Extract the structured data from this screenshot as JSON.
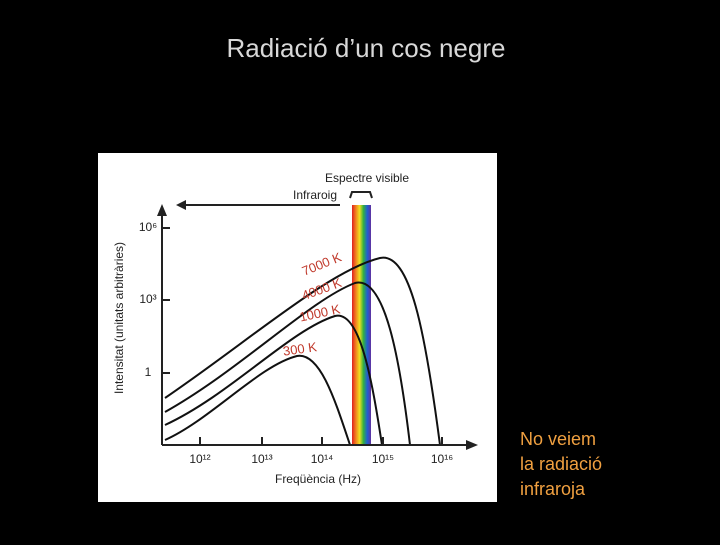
{
  "slide": {
    "title": "Radiació d’un cos negre",
    "figure": {
      "top_label": "Espectre visible",
      "infrared_label": "Infraroig",
      "y_axis_label": "Intensitat (unitats arbitràries)",
      "y_ticks": [
        "10⁶",
        "10³",
        "1"
      ],
      "x_ticks": [
        "10¹²",
        "10¹³",
        "10¹⁴",
        "10¹⁵",
        "10¹⁶"
      ],
      "x_axis_label": "Freqüència (Hz)",
      "curve_labels": [
        "7000 K",
        "4000 K",
        "1000 K",
        "300 K"
      ]
    },
    "note": [
      "No veiem",
      "la radiació",
      "infraroja"
    ]
  }
}
